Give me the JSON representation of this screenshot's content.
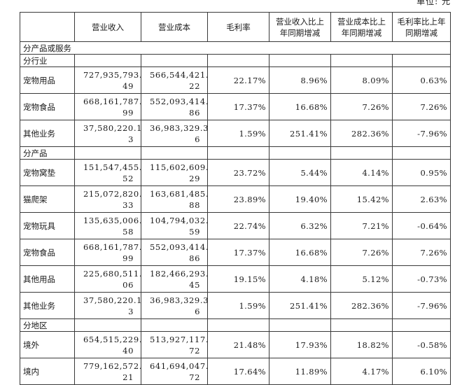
{
  "unit_label": "单位: 元",
  "headers": {
    "rev": "营业收入",
    "cost": "营业成本",
    "margin": "毛利率",
    "rev_yoy": [
      "营业收入比上",
      "年同期增减"
    ],
    "cost_yoy": [
      "营业成本比上",
      "年同期增减"
    ],
    "margin_yoy": [
      "毛利率比上年",
      "同期增减"
    ]
  },
  "section_title": "分产品或服务",
  "groups": [
    {
      "name": "分行业",
      "rows": [
        {
          "label": "宠物用品",
          "rev": [
            "727,935,793.",
            "49"
          ],
          "cost": [
            "566,544,421.",
            "22"
          ],
          "margin": "22.17%",
          "rev_yoy": "8.96%",
          "cost_yoy": "8.09%",
          "margin_yoy": "0.63%"
        },
        {
          "label": "宠物食品",
          "rev": [
            "668,161,787.",
            "99"
          ],
          "cost": [
            "552,093,414.",
            "86"
          ],
          "margin": "17.37%",
          "rev_yoy": "16.68%",
          "cost_yoy": "7.26%",
          "margin_yoy": "7.26%"
        },
        {
          "label": "其他业务",
          "rev": [
            "37,580,220.1",
            "3"
          ],
          "cost": [
            "36,983,329.3",
            "6"
          ],
          "margin": "1.59%",
          "rev_yoy": "251.41%",
          "cost_yoy": "282.36%",
          "margin_yoy": "-7.96%"
        }
      ]
    },
    {
      "name": "分产品",
      "rows": [
        {
          "label": "宠物窝垫",
          "rev": [
            "151,547,455.",
            "52"
          ],
          "cost": [
            "115,602,609.",
            "29"
          ],
          "margin": "23.72%",
          "rev_yoy": "5.44%",
          "cost_yoy": "4.14%",
          "margin_yoy": "0.95%"
        },
        {
          "label": "猫爬架",
          "rev": [
            "215,072,820.",
            "33"
          ],
          "cost": [
            "163,681,485.",
            "88"
          ],
          "margin": "23.89%",
          "rev_yoy": "19.40%",
          "cost_yoy": "15.42%",
          "margin_yoy": "2.63%"
        },
        {
          "label": "宠物玩具",
          "rev": [
            "135,635,006.",
            "58"
          ],
          "cost": [
            "104,794,032.",
            "59"
          ],
          "margin": "22.74%",
          "rev_yoy": "6.32%",
          "cost_yoy": "7.21%",
          "margin_yoy": "-0.64%"
        },
        {
          "label": "宠物食品",
          "rev": [
            "668,161,787.",
            "99"
          ],
          "cost": [
            "552,093,414.",
            "86"
          ],
          "margin": "17.37%",
          "rev_yoy": "16.68%",
          "cost_yoy": "7.26%",
          "margin_yoy": "7.26%"
        },
        {
          "label": "其他用品",
          "rev": [
            "225,680,511.",
            "06"
          ],
          "cost": [
            "182,466,293.",
            "45"
          ],
          "margin": "19.15%",
          "rev_yoy": "4.18%",
          "cost_yoy": "5.12%",
          "margin_yoy": "-0.73%"
        },
        {
          "label": "其他业务",
          "rev": [
            "37,580,220.1",
            "3"
          ],
          "cost": [
            "36,983,329.3",
            "6"
          ],
          "margin": "1.59%",
          "rev_yoy": "251.41%",
          "cost_yoy": "282.36%",
          "margin_yoy": "-7.96%"
        }
      ]
    },
    {
      "name": "分地区",
      "rows": [
        {
          "label": "境外",
          "rev": [
            "654,515,229.",
            "40"
          ],
          "cost": [
            "513,927,117.",
            "72"
          ],
          "margin": "21.48%",
          "rev_yoy": "17.93%",
          "cost_yoy": "18.82%",
          "margin_yoy": "-0.58%"
        },
        {
          "label": "境内",
          "rev": [
            "779,162,572.",
            "21"
          ],
          "cost": [
            "641,694,047.",
            "72"
          ],
          "margin": "17.64%",
          "rev_yoy": "11.89%",
          "cost_yoy": "4.17%",
          "margin_yoy": "6.10%"
        }
      ]
    }
  ]
}
